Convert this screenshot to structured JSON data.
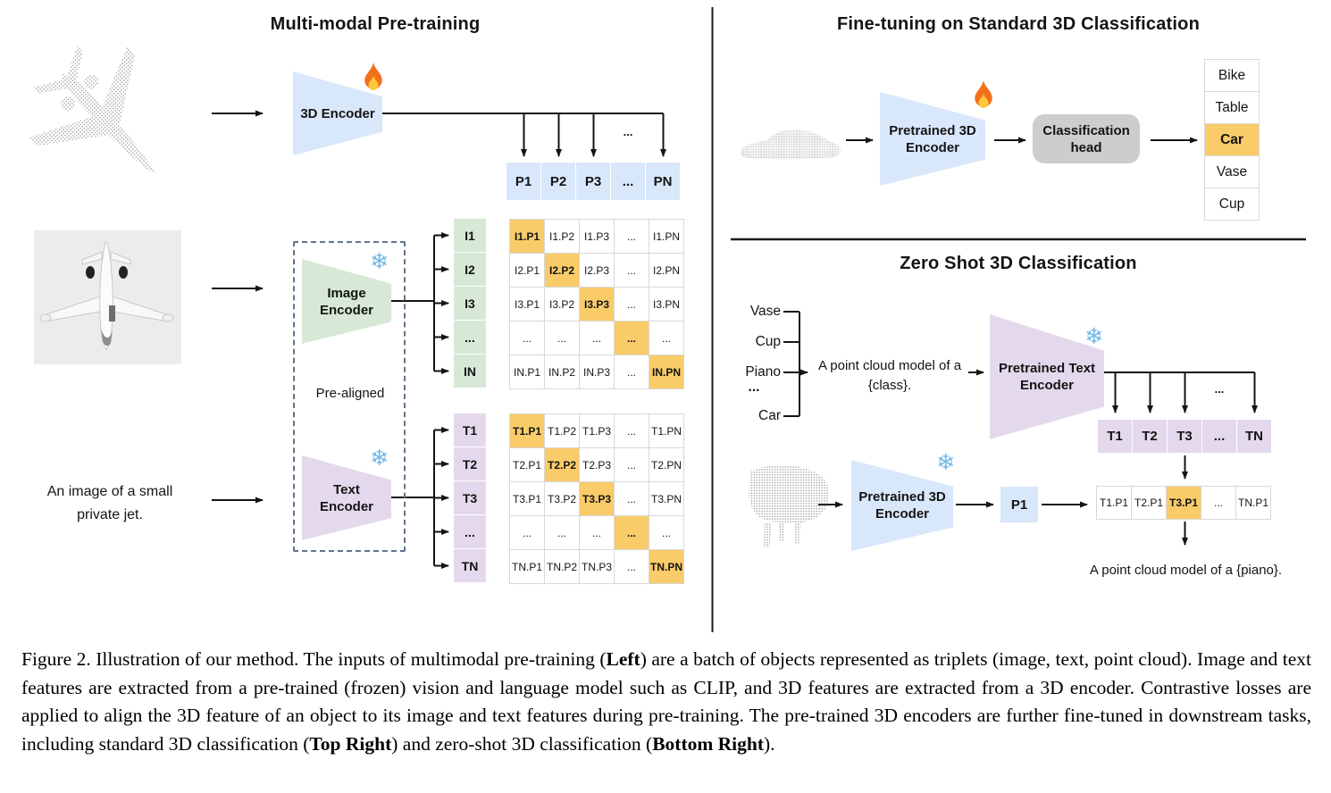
{
  "left": {
    "title": "Multi-modal Pre-training",
    "encoder3d_label": "3D Encoder",
    "image_encoder_label": "Image Encoder",
    "text_encoder_label": "Text Encoder",
    "prealigned_label": "Pre-aligned",
    "input_caption": "An image of a small private jet.",
    "p_row": [
      "P1",
      "P2",
      "P3",
      "...",
      "PN"
    ],
    "p_ellipsis": "...",
    "i_labels": [
      "I1",
      "I2",
      "I3",
      "...",
      "IN"
    ],
    "i_matrix": [
      [
        "I1.P1",
        "I1.P2",
        "I1.P3",
        "...",
        "I1.PN"
      ],
      [
        "I2.P1",
        "I2.P2",
        "I2.P3",
        "...",
        "I2.PN"
      ],
      [
        "I3.P1",
        "I3.P2",
        "I3.P3",
        "...",
        "I3.PN"
      ],
      [
        "...",
        "...",
        "...",
        "...",
        "..."
      ],
      [
        "IN.P1",
        "IN.P2",
        "IN.P3",
        "...",
        "IN.PN"
      ]
    ],
    "t_labels": [
      "T1",
      "T2",
      "T3",
      "...",
      "TN"
    ],
    "t_matrix": [
      [
        "T1.P1",
        "T1.P2",
        "T1.P3",
        "...",
        "T1.PN"
      ],
      [
        "T2.P1",
        "T2.P2",
        "T2.P3",
        "...",
        "T2.PN"
      ],
      [
        "T3.P1",
        "T3.P2",
        "T3.P3",
        "...",
        "T3.PN"
      ],
      [
        "...",
        "...",
        "...",
        "...",
        "..."
      ],
      [
        "TN.P1",
        "TN.P2",
        "TN.P3",
        "...",
        "TN.PN"
      ]
    ]
  },
  "right_top": {
    "title": "Fine-tuning on Standard 3D Classification",
    "encoder_label": "Pretrained 3D Encoder",
    "head_label": "Classification head",
    "classes": [
      "Bike",
      "Table",
      "Car",
      "Vase",
      "Cup"
    ],
    "highlighted_class": "Car"
  },
  "right_bottom": {
    "title": "Zero Shot 3D Classification",
    "class_list": [
      "Vase",
      "Cup",
      "Piano",
      "...",
      "Car"
    ],
    "prompt": "A point cloud model of a {class}.",
    "text_encoder_label": "Pretrained Text Encoder",
    "encoder_3d_label": "Pretrained 3D Encoder",
    "p1_label": "P1",
    "t_row": [
      "T1",
      "T2",
      "T3",
      "...",
      "TN"
    ],
    "t_ellipsis": "...",
    "sim_row": [
      "T1.P1",
      "T2.P1",
      "T3.P1",
      "...",
      "TN.P1"
    ],
    "highlight_index": 2,
    "result": "A point cloud model of a {piano}."
  },
  "caption": {
    "segments": [
      {
        "text": "Figure 2. Illustration of our method. The inputs of multimodal pre-training (",
        "bold": false
      },
      {
        "text": "Left",
        "bold": true
      },
      {
        "text": ") are a batch of objects represented as triplets (image, text, point cloud). Image and text features are extracted from a pre-trained (frozen) vision and language model such as CLIP, and 3D features are extracted from a 3D encoder. Contrastive losses are applied to align the 3D feature of an object to its image and text features during pre-training. The pre-trained 3D encoders are further fine-tuned in downstream tasks, including standard 3D classification (",
        "bold": false
      },
      {
        "text": "Top Right",
        "bold": true
      },
      {
        "text": ") and zero-shot 3D classification (",
        "bold": false
      },
      {
        "text": "Bottom Right",
        "bold": true
      },
      {
        "text": ").",
        "bold": false
      }
    ]
  },
  "icons": {
    "trainable": "fire-icon",
    "frozen": "snowflake-icon",
    "snowflake_glyph": "❄"
  },
  "colors": {
    "feature_blue": "#D9E7FB",
    "feature_green": "#D7E9D6",
    "feature_purple": "#E4D9EC",
    "highlight_orange": "#F9CB69",
    "head_gray": "#CDCDCD"
  }
}
